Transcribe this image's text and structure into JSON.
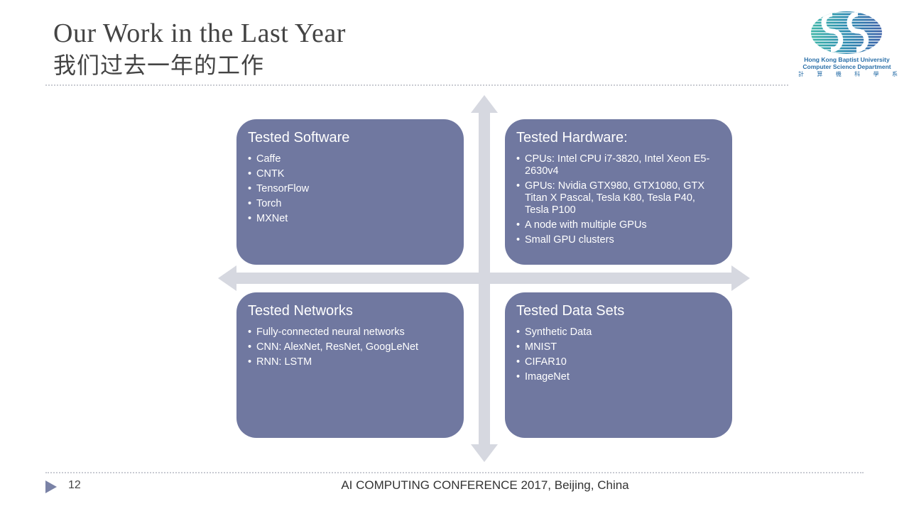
{
  "slide": {
    "title": "Our Work in the Last Year",
    "subtitle": "我们过去一年的工作",
    "page_number": "12",
    "footer": "AI COMPUTING CONFERENCE 2017, Beijing, China"
  },
  "logo": {
    "line1": "Hong Kong Baptist University",
    "line2": "Computer Science Department",
    "chinese_chars": [
      "計",
      "算",
      "機",
      "科",
      "學",
      "系"
    ],
    "color": "#2a6fa8"
  },
  "quadrants": {
    "software": {
      "heading": "Tested Software",
      "items": [
        "Caffe",
        "CNTK",
        "TensorFlow",
        "Torch",
        "MXNet"
      ]
    },
    "hardware": {
      "heading": "Tested Hardware:",
      "items": [
        "CPUs: Intel CPU i7-3820, Intel Xeon E5-2630v4",
        "GPUs: Nvidia GTX980, GTX1080, GTX Titan X Pascal, Tesla K80, Tesla P40, Tesla P100",
        "A node with multiple GPUs",
        "Small GPU clusters"
      ]
    },
    "networks": {
      "heading": "Tested Networks",
      "items": [
        "Fully-connected neural networks",
        "CNN: AlexNet, ResNet, GoogLeNet",
        "RNN: LSTM"
      ]
    },
    "datasets": {
      "heading": "Tested Data Sets",
      "items": [
        "Synthetic Data",
        "MNIST",
        "CIFAR10",
        "ImageNet"
      ]
    }
  },
  "colors": {
    "box_fill": "#7078a0",
    "axis_fill": "#d6d8e0",
    "text_dark": "#444444"
  }
}
